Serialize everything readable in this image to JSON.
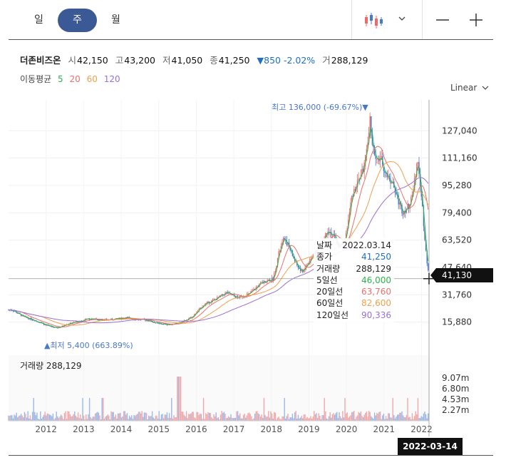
{
  "tabs": [
    {
      "label": "일"
    },
    {
      "label": "주",
      "active": true
    },
    {
      "label": "월"
    }
  ],
  "toolbar": {
    "chart_type_icon": "candlestick-icon",
    "dropdown_icon": "chevron-down-icon",
    "zoom_out_icon": "minus-icon",
    "zoom_in_icon": "plus-icon"
  },
  "quote": {
    "name": "더존비즈온",
    "open_label": "시",
    "open": "42,150",
    "high_label": "고",
    "high": "43,200",
    "low_label": "저",
    "low": "41,050",
    "close_label": "종",
    "close": "41,250",
    "change": "▼850",
    "change_pct": "-2.02%",
    "volume_label": "거",
    "volume": "288,129"
  },
  "ma_legend": {
    "label": "이동평균",
    "items": [
      {
        "text": "5",
        "color": "#2db34a"
      },
      {
        "text": "20",
        "color": "#e8716a"
      },
      {
        "text": "60",
        "color": "#f0a04b"
      },
      {
        "text": "120",
        "color": "#9a6fd6"
      }
    ]
  },
  "scale_label": "Linear",
  "price_axis": [
    "127,040",
    "111,160",
    "95,280",
    "79,400",
    "63,520",
    "47,640",
    "31,760",
    "15,880"
  ],
  "high_annotation": "최고 136,000 (-69.67%)▼",
  "low_annotation": "▲최저 5,400 (663.89%)",
  "volume_title": "거래량 288,129",
  "volume_axis": [
    "9.07m",
    "6.80m",
    "4.53m",
    "2.27m"
  ],
  "x_axis": [
    "2012",
    "2013",
    "2014",
    "2015",
    "2016",
    "2017",
    "2018",
    "2019",
    "2020",
    "2021",
    "2022"
  ],
  "tooltip": [
    {
      "label": "날짜",
      "value": "2022.03.14",
      "color": "#222"
    },
    {
      "label": "종가",
      "value": "41,250",
      "color": "#1f6fc5"
    },
    {
      "label": "거래량",
      "value": "288,129",
      "color": "#222"
    },
    {
      "label": "5일선",
      "value": "46,000",
      "color": "#2db34a"
    },
    {
      "label": "20일선",
      "value": "63,760",
      "color": "#e8716a"
    },
    {
      "label": "60일선",
      "value": "82,600",
      "color": "#f0a04b"
    },
    {
      "label": "120일선",
      "value": "90,336",
      "color": "#9a6fd6"
    }
  ],
  "crosshair_price": "41,130",
  "crosshair_date": "2022-03-14",
  "colors": {
    "up": "#e86a6a",
    "down": "#4a78c8",
    "accent": "#3b5a95"
  },
  "chart_data": {
    "type": "line",
    "x_unit": "year",
    "ylim": [
      0,
      145000
    ],
    "x": [
      2011.1,
      2011.4,
      2011.7,
      2012.0,
      2012.3,
      2012.6,
      2012.9,
      2013.2,
      2013.5,
      2013.8,
      2014.1,
      2014.4,
      2014.7,
      2015.0,
      2015.3,
      2015.6,
      2015.9,
      2016.2,
      2016.5,
      2016.8,
      2017.1,
      2017.4,
      2017.7,
      2017.9,
      2018.05,
      2018.2,
      2018.35,
      2018.5,
      2018.65,
      2018.8,
      2018.95,
      2019.05,
      2019.2,
      2019.35,
      2019.5,
      2019.65,
      2019.8,
      2019.95,
      2020.05,
      2020.15,
      2020.25,
      2020.35,
      2020.45,
      2020.55,
      2020.62,
      2020.7,
      2020.8,
      2020.9,
      2021.0,
      2021.1,
      2021.2,
      2021.3,
      2021.4,
      2021.5,
      2021.6,
      2021.7,
      2021.8,
      2021.9,
      2022.0,
      2022.1,
      2022.2
    ],
    "series": [
      {
        "name": "종가",
        "values": [
          23000,
          19000,
          17000,
          14000,
          12500,
          15000,
          16500,
          18000,
          17000,
          17500,
          18500,
          17500,
          17000,
          15000,
          14500,
          16000,
          19000,
          26000,
          29000,
          33000,
          30000,
          32000,
          38000,
          40000,
          41000,
          56000,
          65000,
          58000,
          50000,
          45000,
          49000,
          52000,
          58000,
          62000,
          70000,
          66000,
          60000,
          62000,
          75000,
          90000,
          95000,
          100000,
          105000,
          115000,
          135000,
          118000,
          108000,
          112000,
          105000,
          100000,
          98000,
          92000,
          85000,
          80000,
          82000,
          84000,
          96000,
          110000,
          90000,
          60000,
          41250
        ]
      }
    ],
    "ma_values": {
      "ma5": 46000,
      "ma20": 63760,
      "ma60": 82600,
      "ma120": 90336
    },
    "volume_ylim": [
      0,
      9070000
    ]
  }
}
